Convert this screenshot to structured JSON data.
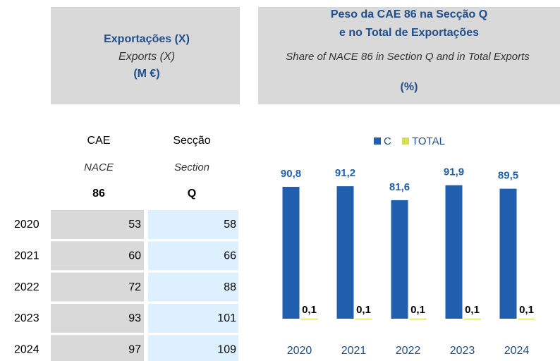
{
  "left_header": {
    "title": "Exportações (X)",
    "subtitle": "Exports (X)",
    "unit": "(M €)"
  },
  "right_header": {
    "title_line1": "Peso da CAE 86 na Secção Q",
    "title_line2": "e no Total de Exportações",
    "subtitle": "Share of NACE 86 in Section Q and in Total Exports",
    "unit": "(%)"
  },
  "table": {
    "columns": [
      {
        "name": "CAE",
        "name_en": "NACE",
        "code": "86"
      },
      {
        "name": "Secção",
        "name_en": "Section",
        "code": "Q"
      }
    ],
    "rows": [
      [
        "2020",
        53,
        58
      ],
      [
        "2021",
        60,
        66
      ],
      [
        "2022",
        72,
        88
      ],
      [
        "2023",
        93,
        101
      ],
      [
        "2024",
        97,
        109
      ]
    ]
  },
  "chart_data": {
    "type": "bar",
    "categories": [
      "2020",
      "2021",
      "2022",
      "2023",
      "2024"
    ],
    "series": [
      {
        "name": "C",
        "color": "#1f5fae",
        "values": [
          90.8,
          91.2,
          81.6,
          91.9,
          89.5
        ],
        "value_labels": [
          "90,8",
          "91,2",
          "81,6",
          "91,9",
          "89,5"
        ]
      },
      {
        "name": "TOTAL",
        "color": "#d4e157",
        "values": [
          0.1,
          0.1,
          0.1,
          0.1,
          0.1
        ],
        "value_labels": [
          "0,1",
          "0,1",
          "0,1",
          "0,1",
          "0,1"
        ]
      }
    ],
    "ylim": [
      0,
      100
    ]
  }
}
